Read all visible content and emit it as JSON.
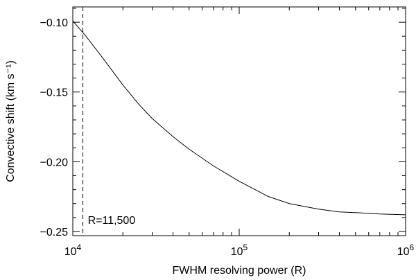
{
  "chart_data": {
    "type": "line",
    "xlabel": "FWHM resolving power (R)",
    "ylabel": "Convective shift (km s⁻¹)",
    "xscale": "log",
    "xlim": [
      10000,
      1000000
    ],
    "ylim": [
      -0.253,
      -0.089
    ],
    "grid": false,
    "x_ticks": [
      {
        "value": 10000,
        "base": "10",
        "exp": "4"
      },
      {
        "value": 100000,
        "base": "10",
        "exp": "5"
      },
      {
        "value": 1000000,
        "base": "10",
        "exp": "6"
      }
    ],
    "y_ticks": [
      {
        "value": -0.1,
        "label": "−0.10"
      },
      {
        "value": -0.15,
        "label": "−0.15"
      },
      {
        "value": -0.2,
        "label": "−0.20"
      },
      {
        "value": -0.25,
        "label": "−0.25"
      }
    ],
    "series": [
      {
        "style": "solid",
        "x": [
          10000,
          12000,
          15000,
          20000,
          25000,
          30000,
          40000,
          50000,
          70000,
          100000,
          150000,
          200000,
          300000,
          400000,
          500000,
          700000,
          1000000
        ],
        "y": [
          -0.099,
          -0.11,
          -0.125,
          -0.145,
          -0.159,
          -0.169,
          -0.182,
          -0.191,
          -0.203,
          -0.214,
          -0.225,
          -0.23,
          -0.234,
          -0.236,
          -0.2365,
          -0.2375,
          -0.238
        ]
      }
    ],
    "reference_line": {
      "x": 11500,
      "style": "dashed"
    },
    "annotations": [
      {
        "text": "R=11,500",
        "x": 12300,
        "y": -0.2415
      }
    ]
  }
}
